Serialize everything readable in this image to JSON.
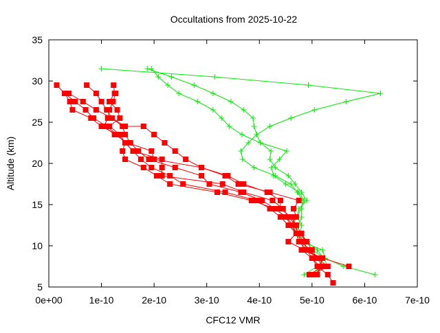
{
  "chart_data": {
    "type": "line",
    "title": "Occultations from 2025-10-22",
    "xlabel": "CFC12 VMR",
    "ylabel": "Altitude (km)",
    "xlim": [
      0,
      7e-10
    ],
    "ylim": [
      5,
      35
    ],
    "xticks": [
      0,
      1e-10,
      2e-10,
      3e-10,
      4e-10,
      5e-10,
      6e-10,
      7e-10
    ],
    "xtick_labels": [
      "0e+00",
      "1e-10",
      "2e-10",
      "3e-10",
      "4e-10",
      "5e-10",
      "6e-10",
      "7e-10"
    ],
    "yticks": [
      5,
      10,
      15,
      20,
      25,
      30,
      35
    ],
    "ytick_labels": [
      "5",
      "10",
      "15",
      "20",
      "25",
      "30",
      "35"
    ],
    "grid": false,
    "colors": {
      "red_profiles": "#ff0000",
      "green_profiles": "#00ee00"
    },
    "series": [
      {
        "color": "#00ee00",
        "marker": "plus",
        "points": [
          [
            1e-10,
            31.5
          ],
          [
            3.15e-10,
            30.5
          ],
          [
            4.93e-10,
            29.5
          ],
          [
            6.3e-10,
            28.5
          ],
          [
            5.65e-10,
            27.5
          ],
          [
            5.05e-10,
            26.5
          ],
          [
            4.6e-10,
            25.5
          ],
          [
            4.2e-10,
            24.5
          ],
          [
            3.95e-10,
            23.5
          ],
          [
            4.02e-10,
            22.5
          ],
          [
            4.52e-10,
            21.5
          ],
          [
            4.38e-10,
            20.5
          ],
          [
            4.23e-10,
            19.5
          ],
          [
            4.27e-10,
            18.5
          ],
          [
            4.5e-10,
            17.5
          ],
          [
            4.75e-10,
            16.5
          ],
          [
            4.85e-10,
            15.5
          ],
          [
            4.8e-10,
            14.5
          ],
          [
            4.8e-10,
            13.5
          ],
          [
            4.75e-10,
            12.5
          ],
          [
            4.7e-10,
            11.5
          ],
          [
            4.75e-10,
            10.5
          ],
          [
            5e-10,
            9.5
          ],
          [
            5.25e-10,
            8.5
          ],
          [
            5.6e-10,
            7.5
          ],
          [
            6.2e-10,
            6.5
          ]
        ]
      },
      {
        "color": "#00ee00",
        "marker": "plus",
        "points": [
          [
            1.87e-10,
            31.5
          ],
          [
            2.33e-10,
            30.5
          ],
          [
            2.76e-10,
            29.5
          ],
          [
            3.12e-10,
            28.5
          ],
          [
            3.46e-10,
            27.5
          ],
          [
            3.7e-10,
            26.5
          ],
          [
            3.88e-10,
            25.5
          ],
          [
            3.9e-10,
            24.5
          ],
          [
            3.95e-10,
            23.5
          ],
          [
            3.79e-10,
            22.5
          ],
          [
            3.65e-10,
            21.5
          ],
          [
            3.68e-10,
            20.5
          ],
          [
            3.9e-10,
            19.5
          ],
          [
            4.3e-10,
            18.5
          ],
          [
            4.6e-10,
            17.5
          ],
          [
            4.72e-10,
            16.5
          ],
          [
            4.82e-10,
            15.5
          ],
          [
            4.8e-10,
            14.5
          ],
          [
            4.7e-10,
            13.5
          ],
          [
            4.65e-10,
            12.5
          ],
          [
            4.7e-10,
            11.5
          ],
          [
            4.8e-10,
            10.5
          ],
          [
            5.2e-10,
            9.5
          ],
          [
            5.25e-10,
            8.5
          ],
          [
            5.1e-10,
            7.5
          ],
          [
            4.85e-10,
            6.5
          ]
        ]
      },
      {
        "color": "#00ee00",
        "marker": "plus",
        "points": [
          [
            1.95e-10,
            31.5
          ],
          [
            2.08e-10,
            30.5
          ],
          [
            2.26e-10,
            29.5
          ],
          [
            2.47e-10,
            28.5
          ],
          [
            2.83e-10,
            27.5
          ],
          [
            3.12e-10,
            26.5
          ],
          [
            3.28e-10,
            25.5
          ],
          [
            3.43e-10,
            24.5
          ],
          [
            3.67e-10,
            23.5
          ],
          [
            4.02e-10,
            22.5
          ],
          [
            4.22e-10,
            21.5
          ],
          [
            4.2e-10,
            20.5
          ],
          [
            4.3e-10,
            19.5
          ],
          [
            4.55e-10,
            18.5
          ],
          [
            4.68e-10,
            17.5
          ],
          [
            4.8e-10,
            16.5
          ],
          [
            4.9e-10,
            15.5
          ],
          [
            4.75e-10,
            14.5
          ],
          [
            4.72e-10,
            13.5
          ],
          [
            4.8e-10,
            12.5
          ],
          [
            4.78e-10,
            11.5
          ],
          [
            4.9e-10,
            10.5
          ],
          [
            5.1e-10,
            9.5
          ],
          [
            5.22e-10,
            8.5
          ],
          [
            5.3e-10,
            7.5
          ],
          [
            4.9e-10,
            6.5
          ]
        ]
      },
      {
        "color": "#ff0000",
        "marker": "square",
        "points": [
          [
            1.5e-11,
            29.5
          ],
          [
            3e-11,
            28.5
          ],
          [
            5e-11,
            27.5
          ],
          [
            7e-11,
            26.5
          ],
          [
            8.5e-11,
            25.5
          ],
          [
            1.1e-10,
            24.5
          ],
          [
            1.3e-10,
            23.5
          ],
          [
            1.45e-10,
            22.5
          ],
          [
            1.6e-10,
            21.5
          ],
          [
            1.75e-10,
            20.5
          ],
          [
            1.95e-10,
            19.5
          ],
          [
            2.3e-10,
            18.5
          ],
          [
            2.55e-10,
            17.5
          ],
          [
            3.35e-10,
            16.5
          ],
          [
            3.95e-10,
            15.5
          ],
          [
            4.2e-10,
            14.5
          ],
          [
            4.4e-10,
            13.5
          ],
          [
            4.55e-10,
            12.5
          ],
          [
            4.7e-10,
            11.5
          ],
          [
            4.75e-10,
            10.5
          ],
          [
            4.9e-10,
            9.5
          ],
          [
            5e-10,
            8.5
          ],
          [
            5.1e-10,
            7.5
          ],
          [
            5.3e-10,
            6.5
          ],
          [
            5.4e-10,
            5.5
          ]
        ]
      },
      {
        "color": "#ff0000",
        "marker": "square",
        "points": [
          [
            7.2e-11,
            29.5
          ],
          [
            9e-11,
            28.5
          ],
          [
            1e-10,
            27.5
          ],
          [
            1.1e-10,
            26.5
          ],
          [
            1.2e-10,
            25.5
          ],
          [
            1.4e-10,
            24.5
          ],
          [
            1.45e-10,
            23.5
          ],
          [
            1.55e-10,
            22.5
          ],
          [
            1.7e-10,
            21.5
          ],
          [
            1.9e-10,
            20.5
          ],
          [
            2.4e-10,
            19.5
          ],
          [
            2.9e-10,
            18.5
          ],
          [
            3.05e-10,
            17.5
          ],
          [
            3.65e-10,
            16.5
          ],
          [
            4.05e-10,
            15.5
          ],
          [
            4.3e-10,
            14.5
          ],
          [
            4.5e-10,
            13.5
          ],
          [
            4.6e-10,
            12.5
          ],
          [
            4.72e-10,
            11.5
          ],
          [
            4.8e-10,
            10.5
          ],
          [
            4.95e-10,
            9.5
          ],
          [
            5.1e-10,
            8.5
          ],
          [
            5.2e-10,
            7.5
          ],
          [
            5.05e-10,
            6.5
          ]
        ]
      },
      {
        "color": "#ff0000",
        "marker": "square",
        "points": [
          [
            1.27e-10,
            28.5
          ],
          [
            1.22e-10,
            27.5
          ],
          [
            1.15e-10,
            26.5
          ],
          [
            1.12e-10,
            25.5
          ],
          [
            1.05e-10,
            24.5
          ],
          [
            1.25e-10,
            23.5
          ],
          [
            1.5e-10,
            22.5
          ],
          [
            1.95e-10,
            21.5
          ],
          [
            2e-10,
            20.5
          ],
          [
            2.9e-10,
            19.5
          ],
          [
            3.4e-10,
            18.5
          ],
          [
            3.7e-10,
            17.5
          ],
          [
            4.15e-10,
            16.5
          ],
          [
            4.4e-10,
            15.5
          ],
          [
            4.4e-10,
            14.5
          ],
          [
            4.6e-10,
            13.5
          ],
          [
            4.7e-10,
            12.5
          ],
          [
            4.8e-10,
            11.5
          ],
          [
            4.9e-10,
            10.5
          ],
          [
            5e-10,
            9.5
          ],
          [
            5.1e-10,
            8.5
          ],
          [
            5.3e-10,
            7.5
          ],
          [
            5e-10,
            6.5
          ]
        ]
      },
      {
        "color": "#ff0000",
        "marker": "square",
        "points": [
          [
            3e-11,
            28.5
          ],
          [
            4e-11,
            27.5
          ],
          [
            4.5e-11,
            26.5
          ],
          [
            8e-11,
            25.5
          ],
          [
            1e-10,
            24.5
          ],
          [
            1.3e-10,
            23.5
          ],
          [
            1.45e-10,
            22.5
          ],
          [
            1.4e-10,
            21.5
          ],
          [
            1.45e-10,
            20.5
          ],
          [
            1.8e-10,
            19.5
          ],
          [
            2.05e-10,
            18.5
          ],
          [
            2.3e-10,
            17.5
          ],
          [
            3.2e-10,
            16.5
          ],
          [
            3.85e-10,
            15.5
          ],
          [
            4.3e-10,
            14.5
          ],
          [
            4.5e-10,
            13.5
          ],
          [
            4.65e-10,
            12.5
          ],
          [
            4.75e-10,
            11.5
          ],
          [
            4.9e-10,
            10.5
          ],
          [
            4.85e-10,
            9.5
          ],
          [
            5.2e-10,
            8.5
          ],
          [
            5.7e-10,
            7.5
          ]
        ]
      },
      {
        "color": "#ff0000",
        "marker": "square",
        "points": [
          [
            3.8e-11,
            28.5
          ],
          [
            6.5e-11,
            27.5
          ],
          [
            9e-11,
            26.5
          ],
          [
            1.2e-10,
            25.5
          ],
          [
            1.45e-10,
            24.5
          ],
          [
            1.8e-10,
            24.5
          ],
          [
            2e-10,
            23.5
          ],
          [
            2.2e-10,
            22.5
          ],
          [
            2.4e-10,
            21.5
          ],
          [
            2.6e-10,
            20.5
          ],
          [
            2.9e-10,
            19.5
          ],
          [
            3.35e-10,
            18.5
          ],
          [
            3.6e-10,
            17.5
          ],
          [
            4.2e-10,
            16.5
          ],
          [
            4.75e-10,
            15.5
          ],
          [
            4.65e-10,
            14.5
          ],
          [
            4.7e-10,
            13.5
          ],
          [
            4.6e-10,
            12.5
          ],
          [
            4.7e-10,
            11.5
          ],
          [
            4.55e-10,
            10.5
          ],
          [
            4.85e-10,
            9.5
          ],
          [
            5.15e-10,
            8.5
          ],
          [
            5.2e-10,
            7.5
          ],
          [
            4.95e-10,
            6.5
          ]
        ]
      },
      {
        "color": "#ff0000",
        "marker": "square",
        "points": [
          [
            1.23e-10,
            29.5
          ],
          [
            1.25e-10,
            28.5
          ],
          [
            1.15e-10,
            27.5
          ],
          [
            1.3e-10,
            26.5
          ],
          [
            1.35e-10,
            25.5
          ],
          [
            1.15e-10,
            24.5
          ],
          [
            1.35e-10,
            23.5
          ],
          [
            1.45e-10,
            22.5
          ],
          [
            1.6e-10,
            21.5
          ],
          [
            2.15e-10,
            20.5
          ],
          [
            2.15e-10,
            19.5
          ],
          [
            2.15e-10,
            18.5
          ],
          [
            3.3e-10,
            17.5
          ],
          [
            3.7e-10,
            16.5
          ],
          [
            4.25e-10,
            15.5
          ],
          [
            4.45e-10,
            14.5
          ],
          [
            4.55e-10,
            13.5
          ],
          [
            4.7e-10,
            12.5
          ],
          [
            4.72e-10,
            11.5
          ],
          [
            4.85e-10,
            10.5
          ],
          [
            4.8e-10,
            9.5
          ],
          [
            5e-10,
            8.5
          ],
          [
            5.15e-10,
            7.5
          ],
          [
            5.1e-10,
            6.5
          ]
        ]
      }
    ]
  }
}
